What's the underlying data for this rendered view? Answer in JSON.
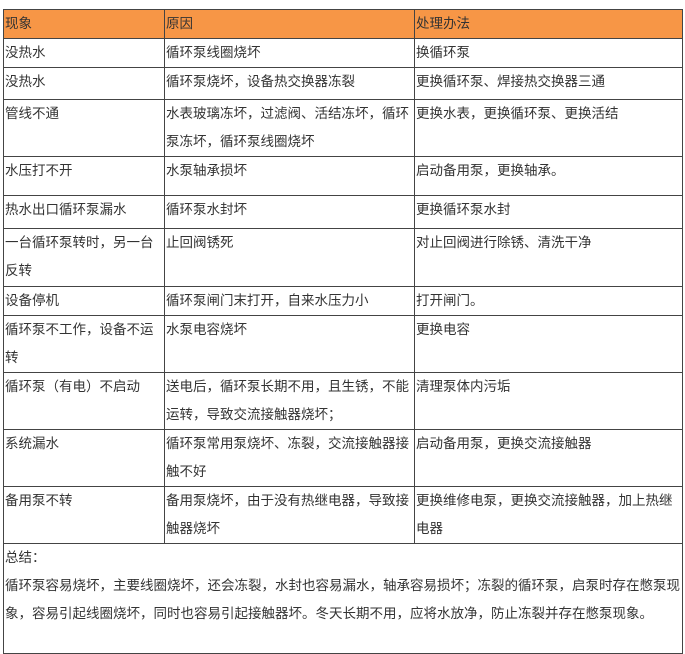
{
  "header": {
    "colors": {
      "header_bg": "#f79646",
      "border": "#444444"
    },
    "columns": [
      "现象",
      "原因",
      "处理办法"
    ]
  },
  "rows": [
    [
      "没热水",
      "循环泵线圈烧坏",
      "换循环泵"
    ],
    [
      "没热水",
      "循环泵烧坏，设备热交换器冻裂",
      "更换循环泵、焊接热交换器三通"
    ],
    [
      "管线不通",
      "水表玻璃冻坏，过滤阀、活结冻坏，循环泵冻坏，循环泵线圈烧坏",
      "更换水表，更换循环泵、更换活结"
    ],
    [
      "水压打不开",
      "水泵轴承损坏",
      "启动备用泵，更换轴承。"
    ],
    [
      "热水出口循环泵漏水",
      "循环泵水封坏",
      "更换循环泵水封"
    ],
    [
      "一台循环泵转时，另一台反转",
      "止回阀锈死",
      "对止回阀进行除锈、清洗干净"
    ],
    [
      "设备停机",
      "循环泵闸门末打开，自来水压力小",
      "打开闸门。"
    ],
    [
      "循环泵不工作，设备不运转",
      "水泵电容烧坏",
      "更换电容"
    ],
    [
      "循环泵（有电）不启动",
      "送电后，循环泵长期不用，且生锈，不能运转，导致交流接触器烧坏；",
      "清理泵体内污垢"
    ],
    [
      "系统漏水",
      "循环泵常用泵烧坏、冻裂，交流接触器接触不好",
      "启动备用泵，更换交流接触器"
    ],
    [
      "备用泵不转",
      "备用泵烧坏，由于没有热继电器，导致接触器烧坏",
      "更换维修电泵，更换交流接触器，加上热继电器"
    ]
  ],
  "summary": {
    "title": "总结：",
    "text": "循环泵容易烧坏，主要线圈烧坏，还会冻裂，水封也容易漏水，轴承容易损坏；冻裂的循环泵，启泵时存在憋泵现象，容易引起线圈烧坏，同时也容易引起接触器坏。冬天长期不用，应将水放净，防止冻裂并存在憋泵现象。"
  }
}
